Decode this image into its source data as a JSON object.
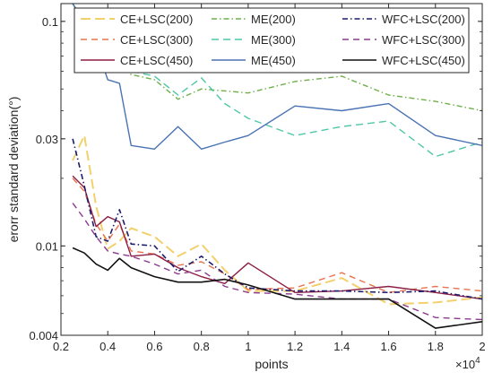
{
  "chart_data": {
    "type": "line",
    "title": "",
    "xlabel": "points",
    "ylabel": "erorr standard deviation(°)",
    "x_multiplier_label": "×10",
    "x_multiplier_exp": "4",
    "xlim": [
      0.2,
      2
    ],
    "ylim": [
      0.004,
      0.12
    ],
    "yscale": "log",
    "grid": false,
    "legend_position": "top",
    "x_ticks": [
      0.2,
      0.4,
      0.6,
      0.8,
      1,
      1.2,
      1.4,
      1.6,
      1.8,
      2
    ],
    "x_tick_labels": [
      "0.2",
      "0.4",
      "0.6",
      "0.8",
      "1",
      "1.2",
      "1.4",
      "1.6",
      "1.8",
      "2"
    ],
    "y_ticks": [
      0.004,
      0.01,
      0.03,
      0.1
    ],
    "y_tick_labels": [
      "0.004",
      "0.01",
      "0.03",
      "0.1"
    ],
    "series": [
      {
        "name": "CE+LSC(200)",
        "color": "#f2d06b",
        "dash": "11,5",
        "width": 2,
        "x": [
          0.25,
          0.3,
          0.35,
          0.4,
          0.45,
          0.5,
          0.6,
          0.7,
          0.8,
          0.9,
          1,
          1.2,
          1.4,
          1.6,
          1.8,
          2
        ],
        "y": [
          0.024,
          0.031,
          0.015,
          0.0097,
          0.0105,
          0.012,
          0.011,
          0.009,
          0.0102,
          0.0078,
          0.0063,
          0.0063,
          0.0072,
          0.0055,
          0.0056,
          0.0059
        ]
      },
      {
        "name": "CE+LSC(300)",
        "color": "#e8734f",
        "dash": "7,5",
        "width": 1.4,
        "x": [
          0.25,
          0.3,
          0.35,
          0.4,
          0.45,
          0.5,
          0.6,
          0.7,
          0.8,
          0.9,
          1,
          1.2,
          1.4,
          1.6,
          1.8,
          2
        ],
        "y": [
          0.02,
          0.0175,
          0.0125,
          0.0105,
          0.0125,
          0.0095,
          0.0092,
          0.0082,
          0.0085,
          0.0075,
          0.0064,
          0.0065,
          0.0076,
          0.0062,
          0.0066,
          0.0063
        ]
      },
      {
        "name": "CE+LSC(450)",
        "color": "#8b1f45",
        "dash": "",
        "width": 1.4,
        "x": [
          0.25,
          0.3,
          0.35,
          0.4,
          0.45,
          0.5,
          0.6,
          0.7,
          0.8,
          0.9,
          1,
          1.2,
          1.4,
          1.6,
          1.8,
          2
        ],
        "y": [
          0.0205,
          0.0182,
          0.0122,
          0.0135,
          0.0128,
          0.009,
          0.0092,
          0.008,
          0.0073,
          0.0068,
          0.0084,
          0.0062,
          0.0063,
          0.0066,
          0.0062,
          0.0058
        ]
      },
      {
        "name": "ME(200)",
        "color": "#6fb04a",
        "dash": "6,3,1.5,3",
        "width": 1.4,
        "x": [
          0.25,
          0.3,
          0.35,
          0.4,
          0.45,
          0.5,
          0.6,
          0.7,
          0.8,
          0.9,
          1,
          1.2,
          1.4,
          1.6,
          1.8,
          2
        ],
        "y": [
          0.12,
          0.098,
          0.08,
          0.068,
          0.062,
          0.058,
          0.055,
          0.045,
          0.05,
          0.049,
          0.048,
          0.054,
          0.057,
          0.047,
          0.044,
          0.04
        ]
      },
      {
        "name": "ME(300)",
        "color": "#4ec7a6",
        "dash": "8,5",
        "width": 1.4,
        "x": [
          0.25,
          0.3,
          0.35,
          0.4,
          0.45,
          0.5,
          0.6,
          0.7,
          0.8,
          0.9,
          1,
          1.2,
          1.4,
          1.6,
          1.8,
          2
        ],
        "y": [
          0.12,
          0.098,
          0.08,
          0.068,
          0.062,
          0.06,
          0.057,
          0.047,
          0.056,
          0.043,
          0.037,
          0.031,
          0.034,
          0.036,
          0.025,
          0.029
        ]
      },
      {
        "name": "ME(450)",
        "color": "#4a73b3",
        "dash": "",
        "width": 1.4,
        "x": [
          0.25,
          0.3,
          0.35,
          0.4,
          0.45,
          0.5,
          0.6,
          0.7,
          0.8,
          0.9,
          1,
          1.2,
          1.4,
          1.6,
          1.8,
          2
        ],
        "y": [
          0.12,
          0.1,
          0.078,
          0.055,
          0.053,
          0.028,
          0.027,
          0.034,
          0.027,
          0.029,
          0.031,
          0.042,
          0.04,
          0.043,
          0.031,
          0.028
        ]
      },
      {
        "name": "WFC+LSC(200)",
        "color": "#1c1c6e",
        "dash": "6,3,1.5,3",
        "width": 1.6,
        "x": [
          0.25,
          0.3,
          0.35,
          0.4,
          0.45,
          0.5,
          0.6,
          0.7,
          0.8,
          0.9,
          1,
          1.2,
          1.4,
          1.6,
          1.8,
          2
        ],
        "y": [
          0.03,
          0.0185,
          0.011,
          0.0105,
          0.0145,
          0.0102,
          0.01,
          0.0077,
          0.009,
          0.0075,
          0.0065,
          0.0063,
          0.0063,
          0.0062,
          0.0063,
          0.0058
        ]
      },
      {
        "name": "WFC+LSC(300)",
        "color": "#8a3b8e",
        "dash": "7,5",
        "width": 1.4,
        "x": [
          0.25,
          0.3,
          0.35,
          0.4,
          0.45,
          0.5,
          0.6,
          0.7,
          0.8,
          0.9,
          1,
          1.2,
          1.4,
          1.6,
          1.8,
          2
        ],
        "y": [
          0.0155,
          0.0132,
          0.011,
          0.0095,
          0.0092,
          0.009,
          0.0083,
          0.0075,
          0.0078,
          0.0066,
          0.0062,
          0.0061,
          0.0058,
          0.0058,
          0.0048,
          0.0047
        ]
      },
      {
        "name": "WFC+LSC(450)",
        "color": "#111111",
        "dash": "",
        "width": 1.6,
        "x": [
          0.25,
          0.3,
          0.35,
          0.4,
          0.45,
          0.5,
          0.6,
          0.7,
          0.8,
          0.9,
          1,
          1.2,
          1.4,
          1.6,
          1.8,
          2
        ],
        "y": [
          0.0098,
          0.0093,
          0.0083,
          0.0078,
          0.0088,
          0.008,
          0.0073,
          0.0069,
          0.0069,
          0.0071,
          0.0067,
          0.0058,
          0.0058,
          0.0058,
          0.0043,
          0.0046
        ]
      }
    ]
  }
}
